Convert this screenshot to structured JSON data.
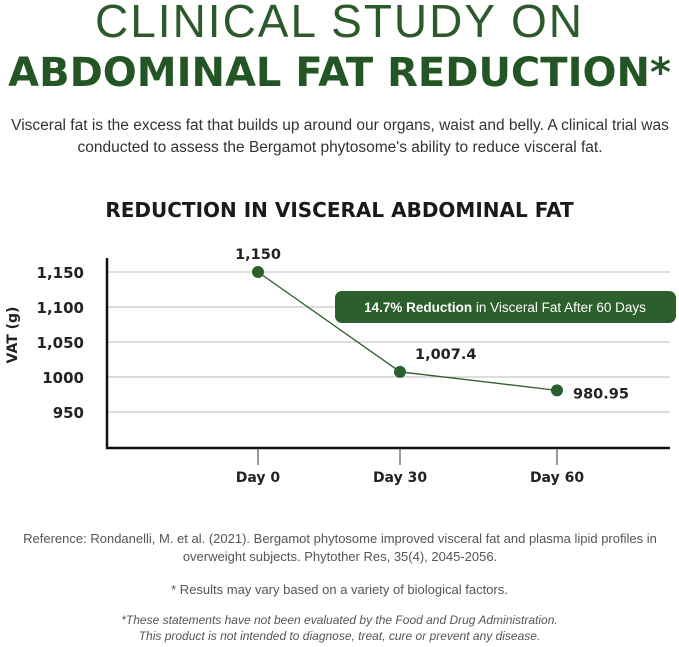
{
  "header": {
    "title_line1": "CLINICAL STUDY ON",
    "title_line2": "ABDOMINAL FAT REDUCTION*",
    "intro": "Visceral fat is the excess fat that builds up around our organs, waist and belly. A clinical trial was conducted to assess the Bergamot phytosome's ability to reduce visceral fat."
  },
  "chart_data": {
    "type": "line",
    "title": "REDUCTION IN VISCERAL ABDOMINAL FAT",
    "ylabel": "VAT (g)",
    "xlabel": "",
    "categories": [
      "Day 0",
      "Day 30",
      "Day 60"
    ],
    "values": [
      1150,
      1007.4,
      980.95
    ],
    "data_labels": [
      "1,150",
      "1,007.4",
      "980.95"
    ],
    "yticks": [
      {
        "value": 1150,
        "label": "1,150"
      },
      {
        "value": 1100,
        "label": "1,100"
      },
      {
        "value": 1050,
        "label": "1,050"
      },
      {
        "value": 1000,
        "label": "1000"
      },
      {
        "value": 950,
        "label": "950"
      }
    ],
    "ylim": [
      900,
      1170
    ],
    "grid": true,
    "color": "#2b5f2b",
    "annotation": {
      "bold": "14.7% Reduction",
      "text": " in Visceral Fat After 60 Days"
    }
  },
  "footer": {
    "reference": "Reference: Rondanelli, M. et al. (2021). Bergamot phytosome improved visceral fat and plasma lipid profiles in overweight subjects. Phytother Res, 35(4), 2045-2056.",
    "note": "* Results may vary based on a variety of biological factors.",
    "disclaimer_1": "*These statements have not been evaluated by the Food and Drug Administration.",
    "disclaimer_2": "This product is not intended to diagnose, treat, cure or prevent any disease."
  }
}
